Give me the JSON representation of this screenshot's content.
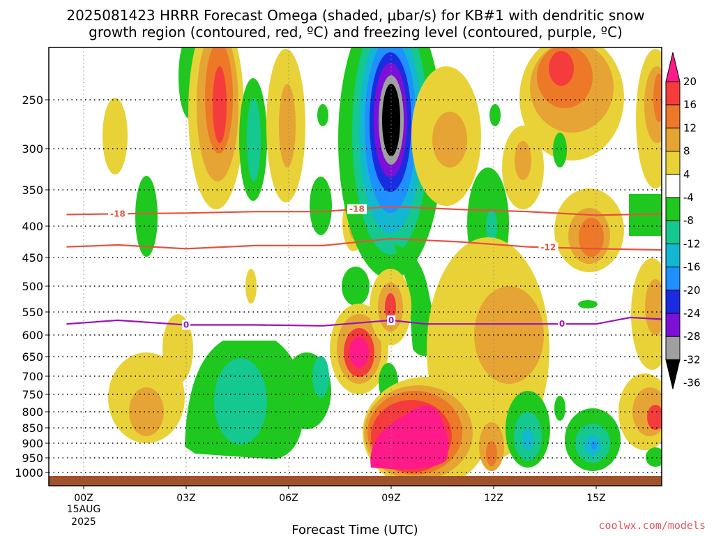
{
  "title": {
    "line1": "2025081423 HRRR Forecast Omega (shaded, μbar/s) for KB#1 with dendritic snow",
    "line2": "growth region (contoured, red, ºC) and freezing level (contoured, purple, ºC)"
  },
  "xlabel": "Forecast Time (UTC)",
  "date_label": {
    "day": "15AUG",
    "year": "2025"
  },
  "credit": "coolwx.com/models",
  "colors": {
    "ground": "#a0522d",
    "contour_dendritic": "#e8503c",
    "contour_freezing": "#9a10c0",
    "credit": "#e8505a"
  },
  "colorbar": {
    "ticks": [
      "20",
      "16",
      "12",
      "8",
      "4",
      "-4",
      "-8",
      "-12",
      "-16",
      "-20",
      "-24",
      "-28",
      "-32",
      "-36"
    ],
    "bands": [
      {
        "color": "#ff1a8a"
      },
      {
        "color": "#f43c3c"
      },
      {
        "color": "#ec7828"
      },
      {
        "color": "#e6a434"
      },
      {
        "color": "#e8d238"
      },
      {
        "color": "#ffffff"
      },
      {
        "color": "#1ec81e"
      },
      {
        "color": "#14c890"
      },
      {
        "color": "#12b8d2"
      },
      {
        "color": "#1e90ff"
      },
      {
        "color": "#1a2ce0"
      },
      {
        "color": "#7c10d8"
      },
      {
        "color": "#a0a0a0"
      },
      {
        "color": "#000000"
      }
    ]
  },
  "chart_data": {
    "type": "heatmap",
    "title": "2025081423 HRRR Forecast Omega (shaded, μbar/s) for KB#1 with dendritic snow growth region (contoured, red, ºC) and freezing level (contoured, purple, ºC)",
    "xlabel": "Forecast Time (UTC)",
    "ylabel": "",
    "x_ticks": [
      "00Z",
      "03Z",
      "06Z",
      "09Z",
      "12Z",
      "15Z"
    ],
    "x_tick_hours": [
      0,
      3,
      6,
      9,
      12,
      15
    ],
    "xlim": [
      -0.5,
      17.0
    ],
    "y_ticks": [
      250,
      300,
      350,
      400,
      450,
      500,
      550,
      600,
      650,
      700,
      750,
      800,
      850,
      900,
      950,
      1000
    ],
    "ylim": [
      1020,
      200
    ],
    "y_scale": "pressure (hPa, decreasing upward)",
    "grid": true,
    "color_levels": [
      20,
      16,
      12,
      8,
      4,
      -4,
      -8,
      -12,
      -16,
      -20,
      -24,
      -28,
      -32,
      -36
    ],
    "omega_features": [
      {
        "time": 4.0,
        "pressure": 260,
        "value": 16
      },
      {
        "time": 5.0,
        "pressure": 330,
        "value": -12
      },
      {
        "time": 6.0,
        "pressure": 280,
        "value": 8
      },
      {
        "time": 7.0,
        "pressure": 200,
        "value": -4
      },
      {
        "time": 9.0,
        "pressure": 270,
        "value": -36
      },
      {
        "time": 9.0,
        "pressure": 380,
        "value": -16
      },
      {
        "time": 11.2,
        "pressure": 280,
        "value": 12
      },
      {
        "time": 14.0,
        "pressure": 200,
        "value": 16
      },
      {
        "time": 15.0,
        "pressure": 420,
        "value": 12
      },
      {
        "time": 16.9,
        "pressure": 280,
        "value": 12
      },
      {
        "time": 1.6,
        "pressure": 820,
        "value": 12
      },
      {
        "time": 4.0,
        "pressure": 760,
        "value": -8
      },
      {
        "time": 5.1,
        "pressure": 720,
        "value": -12
      },
      {
        "time": 6.8,
        "pressure": 700,
        "value": -8
      },
      {
        "time": 8.1,
        "pressure": 640,
        "value": 20
      },
      {
        "time": 8.9,
        "pressure": 540,
        "value": 16
      },
      {
        "time": 9.6,
        "pressure": 830,
        "value": 20
      },
      {
        "time": 9.0,
        "pressure": 930,
        "value": 20
      },
      {
        "time": 11.8,
        "pressure": 680,
        "value": 8
      },
      {
        "time": 12.0,
        "pressure": 950,
        "value": 16
      },
      {
        "time": 13.0,
        "pressure": 880,
        "value": -16
      },
      {
        "time": 15.0,
        "pressure": 900,
        "value": -20
      },
      {
        "time": 16.8,
        "pressure": 820,
        "value": 16
      },
      {
        "time": 16.9,
        "pressure": 500,
        "value": 8
      }
    ],
    "series": [
      {
        "name": "-18",
        "time": [
          -0.5,
          1.0,
          3.0,
          5.0,
          7.0,
          9.0,
          11.0,
          13.0,
          15.0,
          17.0
        ],
        "pressure": [
          384,
          383,
          382,
          380,
          380,
          373,
          377,
          380,
          385,
          383
        ]
      },
      {
        "name": "-12",
        "time": [
          -0.5,
          1.0,
          3.0,
          5.0,
          7.0,
          9.0,
          11.0,
          13.0,
          15.0,
          17.0
        ],
        "pressure": [
          433,
          430,
          436,
          431,
          431,
          420,
          425,
          433,
          436,
          438
        ]
      },
      {
        "name": "0",
        "time": [
          -0.5,
          1.0,
          3.0,
          5.0,
          7.0,
          9.0,
          10.0,
          13.0,
          15.0,
          16.0,
          17.0
        ],
        "pressure": [
          576,
          568,
          578,
          578,
          580,
          568,
          576,
          576,
          576,
          562,
          566
        ]
      }
    ],
    "contour_labels": [
      {
        "text": "-18",
        "series": "-18",
        "time": 1.0
      },
      {
        "text": "-18",
        "series": "-18",
        "time": 8.0
      },
      {
        "text": "-12",
        "series": "-12",
        "time": 13.6
      },
      {
        "text": "0",
        "series": "0",
        "time": 3.0
      },
      {
        "text": "0",
        "series": "0",
        "time": 9.0
      },
      {
        "text": "0",
        "series": "0",
        "time": 14.0
      }
    ]
  }
}
